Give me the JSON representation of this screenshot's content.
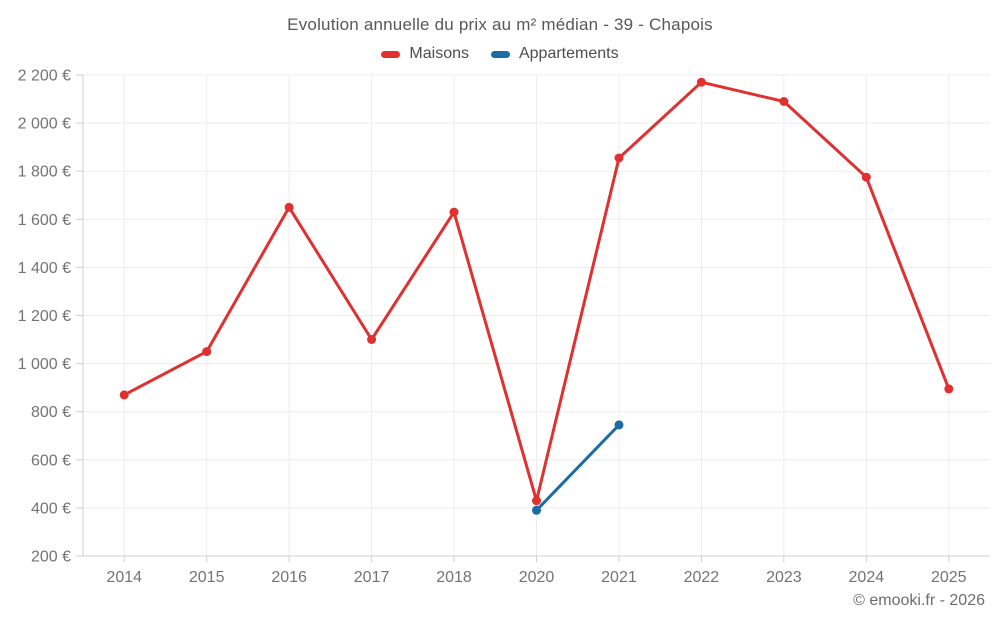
{
  "chart_data": {
    "type": "line",
    "title": "Evolution annuelle du prix au m² médian - 39 - Chapois",
    "categories": [
      "2014",
      "2015",
      "2016",
      "2017",
      "2018",
      "2020",
      "2021",
      "2022",
      "2023",
      "2024",
      "2025"
    ],
    "series": [
      {
        "name": "Maisons",
        "color": "#e03030",
        "values": [
          870,
          1050,
          1650,
          1100,
          1630,
          430,
          1855,
          2170,
          2090,
          1775,
          895
        ]
      },
      {
        "name": "Appartements",
        "color": "#1a6ca3",
        "values": [
          null,
          null,
          null,
          null,
          null,
          390,
          745,
          null,
          null,
          null,
          null
        ]
      }
    ],
    "ylim": [
      200,
      2200
    ],
    "ytick_step": 200,
    "ytick_labels": [
      "200 €",
      "400 €",
      "600 €",
      "800 €",
      "1 000 €",
      "1 200 €",
      "1 400 €",
      "1 600 €",
      "1 800 €",
      "2 000 €",
      "2 200 €"
    ],
    "y_suffix": " €",
    "grid": true,
    "legend_position": "top"
  },
  "footer": {
    "credit": "© emooki.fr - 2026"
  }
}
